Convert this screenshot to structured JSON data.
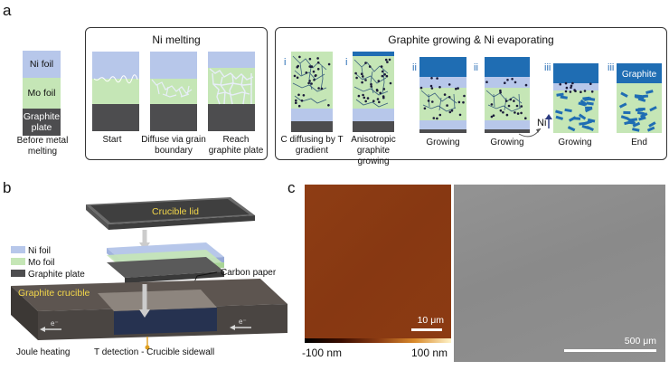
{
  "panel_a": {
    "letter": "a",
    "before": {
      "ni_label": "Ni foil",
      "mo_label": "Mo foil",
      "graphite_label": "Graphite plate",
      "caption": "Before metal melting"
    },
    "ni_melting": {
      "title": "Ni melting",
      "captions": [
        "Start",
        "Diffuse via grain boundary",
        "Reach graphite plate"
      ]
    },
    "graphite_growing": {
      "title": "Graphite growing & Ni evaporating",
      "stages": [
        {
          "roman": "i",
          "caption": "C diffusing by T gradient"
        },
        {
          "roman": "i",
          "caption": "Anisotropic graphite growing"
        },
        {
          "roman": "ii",
          "caption": "Growing"
        },
        {
          "roman": "ii",
          "caption": "Growing"
        },
        {
          "roman": "iii",
          "caption": "Growing"
        },
        {
          "roman": "iii",
          "caption": "End"
        }
      ],
      "ni_arrow_label": "Ni",
      "graphite_label": "Graphite"
    }
  },
  "panel_b": {
    "letter": "b",
    "crucible_lid": "Crucible lid",
    "legend": [
      "Ni foil",
      "Mo foil",
      "Graphite plate"
    ],
    "carbon_paper": "Carbon paper",
    "graphite_crucible": "Graphite crucible",
    "electron_label": "e⁻",
    "joule_heating": "Joule heating",
    "t_detection": "T detection - Crucible sidewall"
  },
  "panel_c": {
    "letter": "c",
    "scale_left": "10 μm",
    "scale_right": "500 μm",
    "colorbar_min": "-100 nm",
    "colorbar_max": "100 nm"
  },
  "colors": {
    "ni": "#b7c7ea",
    "mo": "#c5e6b6",
    "graphite_plate": "#4d4d4f",
    "graphite_dark": "#1f6db3",
    "afm": "#8a3a12",
    "sem": "#8e8e8e"
  }
}
